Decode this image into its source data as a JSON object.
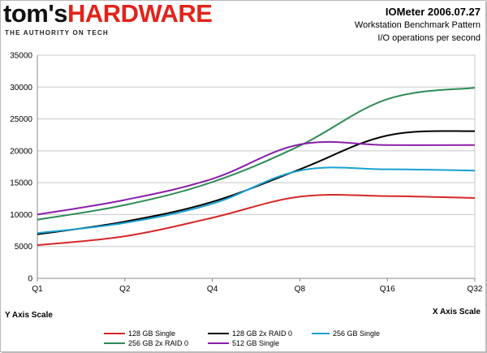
{
  "brand": {
    "name_part1": "tom's",
    "name_part2": "HARDWARE",
    "tagline": "THE AUTHORITY ON TECH",
    "accent_color": "#e2231a"
  },
  "header": {
    "title": "IOMeter 2006.07.27",
    "subtitle": "Workstation Benchmark Pattern",
    "subtitle2": "I/O operations per second"
  },
  "chart_data": {
    "type": "line",
    "x": [
      "Q1",
      "Q2",
      "Q4",
      "Q8",
      "Q16",
      "Q32"
    ],
    "xlabel": "X Axis Scale",
    "ylabel": "Y Axis Scale",
    "ylim": [
      0,
      35000
    ],
    "yticks": [
      0,
      5000,
      10000,
      15000,
      20000,
      25000,
      30000,
      35000
    ],
    "grid": "horizontal",
    "legend_position": "bottom",
    "series": [
      {
        "name": "128 GB Single",
        "color": "#d62728",
        "values": [
          5200,
          6600,
          9500,
          12800,
          12900,
          12600
        ]
      },
      {
        "name": "128 GB 2x RAID 0",
        "color": "#000000",
        "values": [
          6900,
          8900,
          12000,
          17100,
          22400,
          23100
        ]
      },
      {
        "name": "256 GB Single",
        "color": "#1ba1d0",
        "values": [
          7100,
          8700,
          11700,
          16900,
          17100,
          16900
        ]
      },
      {
        "name": "256 GB 2x RAID 0",
        "color": "#2e8b57",
        "values": [
          9200,
          11500,
          15100,
          20800,
          28100,
          29900
        ]
      },
      {
        "name": "512 GB Single",
        "color": "#8b1fa9",
        "values": [
          10000,
          12300,
          15600,
          21000,
          20900,
          20900
        ]
      }
    ]
  }
}
